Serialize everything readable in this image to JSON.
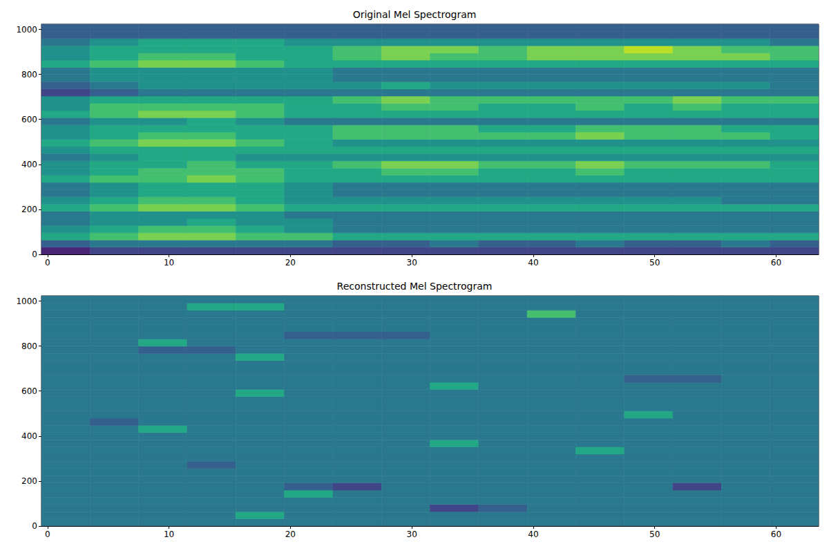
{
  "chart_data": [
    {
      "type": "heatmap",
      "title": "Original Mel Spectrogram",
      "color": "viridis",
      "color_range": [
        0,
        10
      ],
      "xlim": [
        -0.5,
        63.5
      ],
      "xticks": [
        0,
        10,
        20,
        30,
        40,
        50,
        60
      ],
      "ylim": [
        -0.5,
        1023.5
      ],
      "yticks": [
        0,
        200,
        400,
        600,
        800,
        1000
      ],
      "x_edges": [
        -0.5,
        3.5,
        7.5,
        11.5,
        15.5,
        19.5,
        23.5,
        27.5,
        31.5,
        35.5,
        39.5,
        43.5,
        47.5,
        51.5,
        55.5,
        59.5,
        63.5
      ],
      "y_edges": [
        -0.5,
        31.5,
        63.5,
        95.5,
        127.5,
        159.5,
        191.5,
        223.5,
        255.5,
        287.5,
        319.5,
        351.5,
        383.5,
        415.5,
        447.5,
        479.5,
        511.5,
        543.5,
        575.5,
        607.5,
        639.5,
        671.5,
        703.5,
        735.5,
        767.5,
        799.5,
        831.5,
        863.5,
        895.5,
        927.5,
        959.5,
        991.5,
        1023.5
      ],
      "cells": [
        [
          1,
          2,
          2,
          2,
          2,
          2,
          2,
          2,
          2,
          2,
          2,
          2,
          2,
          2,
          2,
          2
        ],
        [
          3,
          4,
          4,
          4,
          4,
          4,
          3,
          3,
          4,
          3,
          3,
          4,
          3,
          3,
          4,
          3
        ],
        [
          6,
          7,
          8,
          8,
          7,
          7,
          6,
          6,
          6,
          6,
          6,
          6,
          6,
          6,
          6,
          6
        ],
        [
          5,
          6,
          7,
          7,
          6,
          5,
          4,
          4,
          4,
          4,
          4,
          4,
          4,
          4,
          4,
          4
        ],
        [
          4,
          5,
          5,
          6,
          5,
          5,
          4,
          4,
          4,
          4,
          4,
          4,
          4,
          4,
          4,
          4
        ],
        [
          4,
          5,
          5,
          5,
          5,
          4,
          4,
          4,
          4,
          4,
          4,
          4,
          4,
          4,
          4,
          4
        ],
        [
          6,
          7,
          8,
          8,
          7,
          6,
          6,
          6,
          6,
          6,
          6,
          6,
          6,
          6,
          6,
          6
        ],
        [
          5,
          6,
          7,
          7,
          6,
          5,
          5,
          5,
          5,
          5,
          5,
          5,
          5,
          5,
          4,
          4
        ],
        [
          4,
          5,
          6,
          6,
          6,
          5,
          4,
          4,
          4,
          4,
          4,
          4,
          4,
          4,
          4,
          4
        ],
        [
          4,
          5,
          6,
          6,
          6,
          5,
          4,
          4,
          4,
          4,
          4,
          4,
          4,
          4,
          4,
          4
        ],
        [
          6,
          7,
          7,
          8,
          7,
          6,
          6,
          6,
          6,
          6,
          6,
          6,
          6,
          6,
          6,
          6
        ],
        [
          5,
          6,
          7,
          7,
          7,
          6,
          6,
          7,
          7,
          6,
          6,
          7,
          6,
          6,
          6,
          6
        ],
        [
          5,
          6,
          6,
          7,
          6,
          6,
          7,
          8,
          8,
          7,
          7,
          8,
          7,
          7,
          7,
          6
        ],
        [
          4,
          5,
          6,
          6,
          5,
          5,
          5,
          5,
          5,
          5,
          5,
          5,
          5,
          5,
          5,
          5
        ],
        [
          5,
          6,
          6,
          6,
          6,
          6,
          6,
          6,
          6,
          6,
          6,
          6,
          6,
          6,
          6,
          6
        ],
        [
          6,
          7,
          8,
          8,
          7,
          6,
          5,
          5,
          5,
          5,
          5,
          5,
          5,
          5,
          5,
          5
        ],
        [
          5,
          6,
          7,
          7,
          6,
          6,
          7,
          7,
          7,
          7,
          7,
          8,
          7,
          7,
          7,
          6
        ],
        [
          5,
          6,
          6,
          6,
          6,
          6,
          7,
          7,
          7,
          6,
          6,
          7,
          7,
          7,
          6,
          6
        ],
        [
          4,
          5,
          5,
          6,
          5,
          4,
          4,
          4,
          4,
          4,
          4,
          4,
          4,
          4,
          4,
          4
        ],
        [
          6,
          7,
          8,
          8,
          7,
          6,
          6,
          6,
          6,
          6,
          6,
          6,
          6,
          6,
          6,
          6
        ],
        [
          5,
          7,
          7,
          7,
          7,
          6,
          6,
          7,
          7,
          6,
          6,
          7,
          6,
          7,
          6,
          6
        ],
        [
          5,
          6,
          6,
          6,
          6,
          6,
          7,
          8,
          7,
          7,
          7,
          7,
          7,
          8,
          7,
          7
        ],
        [
          2,
          3,
          4,
          4,
          4,
          4,
          4,
          4,
          4,
          4,
          4,
          4,
          4,
          4,
          4,
          4
        ],
        [
          3,
          4,
          5,
          5,
          5,
          5,
          5,
          6,
          5,
          5,
          5,
          5,
          5,
          5,
          5,
          4
        ],
        [
          4,
          5,
          5,
          5,
          5,
          5,
          4,
          4,
          4,
          4,
          4,
          4,
          4,
          4,
          4,
          4
        ],
        [
          4,
          5,
          5,
          5,
          5,
          5,
          4,
          4,
          4,
          4,
          4,
          4,
          4,
          4,
          4,
          4
        ],
        [
          6,
          7,
          8,
          8,
          7,
          6,
          6,
          6,
          6,
          6,
          6,
          6,
          6,
          6,
          6,
          6
        ],
        [
          5,
          6,
          7,
          7,
          6,
          6,
          7,
          8,
          7,
          7,
          8,
          8,
          8,
          8,
          8,
          7
        ],
        [
          5,
          6,
          6,
          6,
          6,
          6,
          7,
          8,
          8,
          7,
          8,
          8,
          9,
          8,
          7,
          7
        ],
        [
          4,
          5,
          6,
          6,
          6,
          5,
          5,
          5,
          5,
          5,
          5,
          5,
          5,
          5,
          5,
          4
        ],
        [
          3,
          3,
          3,
          3,
          3,
          3,
          3,
          3,
          3,
          3,
          3,
          3,
          3,
          3,
          3,
          3
        ],
        [
          3,
          3,
          3,
          3,
          3,
          3,
          3,
          3,
          3,
          3,
          3,
          3,
          3,
          3,
          3,
          3
        ]
      ]
    },
    {
      "type": "heatmap",
      "title": "Reconstructed Mel Spectrogram",
      "color": "viridis",
      "color_range": [
        0,
        10
      ],
      "xlim": [
        -0.5,
        63.5
      ],
      "xticks": [
        0,
        10,
        20,
        30,
        40,
        50,
        60
      ],
      "ylim": [
        -0.5,
        1023.5
      ],
      "yticks": [
        0,
        200,
        400,
        600,
        800,
        1000
      ],
      "x_edges": [
        -0.5,
        3.5,
        7.5,
        11.5,
        15.5,
        19.5,
        23.5,
        27.5,
        31.5,
        35.5,
        39.5,
        43.5,
        47.5,
        51.5,
        55.5,
        59.5,
        63.5
      ],
      "y_edges": [
        -0.5,
        31.5,
        63.5,
        95.5,
        127.5,
        159.5,
        191.5,
        223.5,
        255.5,
        287.5,
        319.5,
        351.5,
        383.5,
        415.5,
        447.5,
        479.5,
        511.5,
        543.5,
        575.5,
        607.5,
        639.5,
        671.5,
        703.5,
        735.5,
        767.5,
        799.5,
        831.5,
        863.5,
        895.5,
        927.5,
        959.5,
        991.5,
        1023.5
      ],
      "cells": [
        [
          4,
          4,
          4,
          4,
          4,
          4,
          4,
          4,
          4,
          4,
          4,
          4,
          4,
          4,
          4,
          4
        ],
        [
          4,
          4,
          4,
          4,
          6,
          4,
          4,
          4,
          4,
          4,
          4,
          4,
          4,
          4,
          4,
          4
        ],
        [
          4,
          4,
          4,
          4,
          4,
          4,
          4,
          4,
          2,
          3,
          4,
          4,
          4,
          4,
          4,
          4
        ],
        [
          4,
          4,
          4,
          4,
          4,
          4,
          4,
          4,
          4,
          4,
          4,
          4,
          4,
          4,
          4,
          4
        ],
        [
          4,
          4,
          4,
          4,
          4,
          6,
          4,
          4,
          4,
          4,
          4,
          4,
          4,
          4,
          4,
          4
        ],
        [
          4,
          4,
          4,
          4,
          4,
          3,
          2,
          4,
          4,
          4,
          4,
          4,
          4,
          2,
          4,
          4
        ],
        [
          4,
          4,
          4,
          4,
          4,
          4,
          4,
          4,
          4,
          4,
          4,
          4,
          4,
          4,
          4,
          4
        ],
        [
          4,
          4,
          4,
          4,
          4,
          4,
          4,
          4,
          4,
          4,
          4,
          4,
          4,
          4,
          4,
          4
        ],
        [
          4,
          4,
          4,
          3,
          4,
          4,
          4,
          4,
          4,
          4,
          4,
          4,
          4,
          4,
          4,
          4
        ],
        [
          4,
          4,
          4,
          4,
          4,
          4,
          4,
          4,
          4,
          4,
          4,
          4,
          4,
          4,
          4,
          4
        ],
        [
          4,
          4,
          4,
          4,
          4,
          4,
          4,
          4,
          4,
          4,
          4,
          6,
          4,
          4,
          4,
          4
        ],
        [
          4,
          4,
          4,
          4,
          4,
          4,
          4,
          4,
          6,
          4,
          4,
          4,
          4,
          4,
          4,
          4
        ],
        [
          4,
          4,
          4,
          4,
          4,
          4,
          4,
          4,
          4,
          4,
          4,
          4,
          4,
          4,
          4,
          4
        ],
        [
          4,
          4,
          6,
          4,
          4,
          4,
          4,
          4,
          4,
          4,
          4,
          4,
          4,
          4,
          4,
          4
        ],
        [
          4,
          3,
          4,
          4,
          4,
          4,
          4,
          4,
          4,
          4,
          4,
          4,
          4,
          4,
          4,
          4
        ],
        [
          4,
          4,
          4,
          4,
          4,
          4,
          4,
          4,
          4,
          4,
          4,
          4,
          6,
          4,
          4,
          4
        ],
        [
          4,
          4,
          4,
          4,
          4,
          4,
          4,
          4,
          4,
          4,
          4,
          4,
          4,
          4,
          4,
          4
        ],
        [
          4,
          4,
          4,
          4,
          4,
          4,
          4,
          4,
          4,
          4,
          4,
          4,
          4,
          4,
          4,
          4
        ],
        [
          4,
          4,
          4,
          4,
          6,
          4,
          4,
          4,
          4,
          4,
          4,
          4,
          4,
          4,
          4,
          4
        ],
        [
          4,
          4,
          4,
          4,
          4,
          4,
          4,
          4,
          6,
          4,
          4,
          4,
          4,
          4,
          4,
          4
        ],
        [
          4,
          4,
          4,
          4,
          4,
          4,
          4,
          4,
          4,
          4,
          4,
          4,
          3,
          3,
          4,
          4
        ],
        [
          4,
          4,
          4,
          4,
          4,
          4,
          4,
          4,
          4,
          4,
          4,
          4,
          4,
          4,
          4,
          4
        ],
        [
          4,
          4,
          4,
          4,
          4,
          4,
          4,
          4,
          4,
          4,
          4,
          4,
          4,
          4,
          4,
          4
        ],
        [
          4,
          4,
          4,
          4,
          6,
          4,
          4,
          4,
          4,
          4,
          4,
          4,
          4,
          4,
          4,
          4
        ],
        [
          4,
          4,
          3,
          3,
          4,
          4,
          4,
          4,
          4,
          4,
          4,
          4,
          4,
          4,
          4,
          4
        ],
        [
          4,
          4,
          6,
          4,
          4,
          4,
          4,
          4,
          4,
          4,
          4,
          4,
          4,
          4,
          4,
          4
        ],
        [
          4,
          4,
          4,
          4,
          4,
          3,
          3,
          3,
          4,
          4,
          4,
          4,
          4,
          4,
          4,
          4
        ],
        [
          4,
          4,
          4,
          4,
          4,
          4,
          4,
          4,
          4,
          4,
          4,
          4,
          4,
          4,
          4,
          4
        ],
        [
          4,
          4,
          4,
          4,
          4,
          4,
          4,
          4,
          4,
          4,
          4,
          4,
          4,
          4,
          4,
          4
        ],
        [
          4,
          4,
          4,
          4,
          4,
          4,
          4,
          4,
          4,
          4,
          7,
          4,
          4,
          4,
          4,
          4
        ],
        [
          4,
          4,
          4,
          6,
          6,
          4,
          4,
          4,
          4,
          4,
          4,
          4,
          4,
          4,
          4,
          4
        ],
        [
          4,
          4,
          4,
          4,
          4,
          4,
          4,
          4,
          4,
          4,
          4,
          4,
          4,
          4,
          4,
          4
        ]
      ]
    }
  ]
}
